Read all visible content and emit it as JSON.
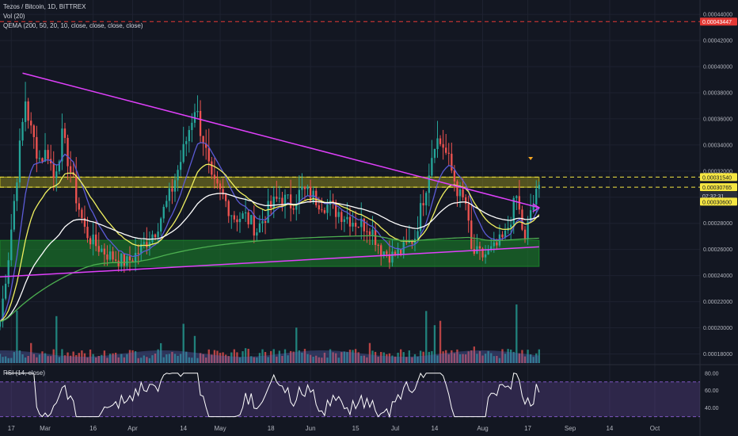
{
  "header": {
    "symbol_line": "Tezos / Bitcoin, 1D, BITTREX",
    "vol_line": "Vol (20)",
    "qema_line": "QEMA (200, 50, 20, 10, close, close, close, close)",
    "rsi_line": "RSI (14, close)"
  },
  "colors": {
    "background": "#131722",
    "grid": "#1e2230",
    "up": "#26a69a",
    "down": "#ef5350",
    "trendline": "#e040fb",
    "resistance_zone": "#c8c01e",
    "support_zone": "#1b8a2a",
    "ema_white": "#ffffff",
    "ema_yellow": "#f0f060",
    "ema_purple": "#5b5bd6",
    "ema_green": "#4caf50",
    "rsi_line": "#ffffff",
    "rsi_band": "#7e57c2",
    "price_red_tag": "#e53935",
    "price_yellow_tag": "#f5e642"
  },
  "chart_data": {
    "type": "candlestick",
    "price_axis": {
      "ticks": [
        "0.00044000",
        "0.00042000",
        "0.00040000",
        "0.00038000",
        "0.00036000",
        "0.00034000",
        "0.00032000",
        "0.00030000",
        "0.00028000",
        "0.00026000",
        "0.00024000",
        "0.00022000",
        "0.00020000",
        "0.00018000"
      ],
      "tick_values": [
        0.00044,
        0.00042,
        0.0004,
        0.00038,
        0.00036,
        0.00034,
        0.00032,
        0.0003,
        0.00028,
        0.00026,
        0.00024,
        0.00022,
        0.0002,
        0.00018
      ],
      "ylim": [
        0.000173,
        0.000451
      ]
    },
    "price_tags": [
      {
        "label": "0.00043447",
        "value": 0.00043447,
        "style": "red"
      },
      {
        "label": "0.00031540",
        "value": 0.0003154,
        "style": "yellow"
      },
      {
        "label": "0.00030765",
        "value": 0.00030765,
        "style": "yellow"
      },
      {
        "label": "07:32:31",
        "value": 0.0003011,
        "style": "dark"
      },
      {
        "label": "0.00030600",
        "value": 0.0002966,
        "style": "yellow"
      }
    ],
    "x_axis": {
      "labels": [
        "17",
        "Mar",
        "16",
        "Apr",
        "14",
        "May",
        "18",
        "Jun",
        "15",
        "Jul",
        "14",
        "Aug",
        "17",
        "Sep",
        "14",
        "Oct"
      ],
      "label_days": [
        17,
        29,
        46,
        60,
        78,
        91,
        109,
        123,
        139,
        153,
        167,
        184,
        200,
        215,
        229,
        245
      ],
      "day_range": [
        13,
        261
      ]
    },
    "zones": [
      {
        "name": "resistance",
        "low": 0.00030765,
        "high": 0.0003154
      },
      {
        "name": "support",
        "low": 0.000247,
        "high": 0.000267
      }
    ],
    "trendlines": [
      {
        "from": {
          "day": 21,
          "price": 0.000395
        },
        "to": {
          "day": 204,
          "price": 0.000292
        }
      },
      {
        "from": {
          "day": 13,
          "price": 0.000239
        },
        "to": {
          "day": 204,
          "price": 0.000262
        }
      }
    ],
    "alert_line": 0.00043447,
    "rsi": {
      "ticks": [
        "80.00",
        "60.00",
        "40.00"
      ],
      "tick_values": [
        80,
        60,
        40
      ],
      "ylim": [
        26,
        88
      ],
      "band": [
        30,
        70
      ],
      "last_value": 58
    },
    "volume_scale": 1.0
  }
}
